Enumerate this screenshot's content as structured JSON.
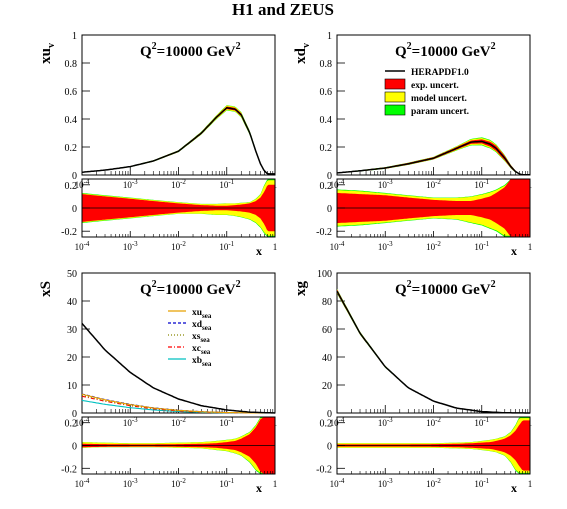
{
  "figure": {
    "title": "H1 and ZEUS",
    "scale_label": "Q",
    "scale_exp": "2",
    "scale_value": "=10000 GeV",
    "scale_unit_exp": "2"
  },
  "legend_uncert": {
    "entries": [
      "HERAPDF1.0",
      "exp. uncert.",
      "model uncert.",
      "param uncert."
    ]
  },
  "legend_sea": {
    "entries": [
      {
        "base": "xu",
        "sub": "sea"
      },
      {
        "base": "xd",
        "sub": "sea"
      },
      {
        "base": "xs",
        "sub": "sea"
      },
      {
        "base": "xc",
        "sub": "sea"
      },
      {
        "base": "xb",
        "sub": "sea"
      }
    ]
  },
  "colors": {
    "central": "#000000",
    "exp": "#ff0000",
    "model": "#ffff00",
    "param": "#00ff00",
    "xu_sea": "#e8a000",
    "xd_sea": "#0000cc",
    "xs_sea": "#888800",
    "xc_sea": "#ff0000",
    "xb_sea": "#00c0c0"
  },
  "chart_data": [
    {
      "type": "area",
      "panel": "xu_v",
      "ylabel_base": "xu",
      "ylabel_sub": "v",
      "xlabel": "x",
      "xscale": "log",
      "xlim": [
        0.0001,
        1
      ],
      "ylim": [
        0,
        1
      ],
      "yticks": [
        "0",
        "0.2",
        "0.4",
        "0.6",
        "0.8",
        "1"
      ],
      "xticks": [
        "10-4",
        "10-3",
        "10-2",
        "10-1",
        "1"
      ],
      "x": [
        0.0001,
        0.0003,
        0.001,
        0.003,
        0.01,
        0.03,
        0.06,
        0.1,
        0.15,
        0.2,
        0.3,
        0.4,
        0.5,
        0.6,
        0.7
      ],
      "series": [
        {
          "name": "HERAPDF1.0",
          "values": [
            0.02,
            0.035,
            0.06,
            0.1,
            0.17,
            0.3,
            0.41,
            0.48,
            0.47,
            0.43,
            0.3,
            0.17,
            0.08,
            0.03,
            0.008
          ]
        }
      ],
      "band_param_rel": [
        0.08,
        0.07,
        0.06,
        0.05,
        0.04,
        0.035,
        0.035,
        0.04,
        0.04,
        0.045,
        0.05,
        0.06,
        0.08,
        0.12,
        0.2
      ],
      "band_exp_rel": [
        0.06,
        0.05,
        0.045,
        0.04,
        0.03,
        0.025,
        0.02,
        0.02,
        0.02,
        0.025,
        0.03,
        0.04,
        0.05,
        0.07,
        0.1
      ]
    },
    {
      "type": "area",
      "panel": "xu_v_ratio",
      "xscale": "log",
      "xlim": [
        0.0001,
        1
      ],
      "ylim": [
        -0.25,
        0.25
      ],
      "yticks": [
        "0.2",
        "0",
        "-0.2"
      ],
      "xticks": [
        "10-4",
        "10-3",
        "10-2",
        "10-1",
        "1"
      ],
      "xlabel": "x",
      "x": [
        0.0001,
        0.0003,
        0.001,
        0.003,
        0.01,
        0.03,
        0.06,
        0.1,
        0.15,
        0.2,
        0.3,
        0.4,
        0.5,
        0.6,
        0.7
      ],
      "param": [
        0.13,
        0.11,
        0.09,
        0.07,
        0.05,
        0.035,
        0.035,
        0.04,
        0.04,
        0.045,
        0.05,
        0.08,
        0.12,
        0.2,
        0.25
      ],
      "param_low": [
        -0.13,
        -0.11,
        -0.09,
        -0.07,
        -0.05,
        -0.05,
        -0.06,
        -0.06,
        -0.07,
        -0.08,
        -0.1,
        -0.13,
        -0.17,
        -0.22,
        -0.25
      ],
      "exp": [
        0.12,
        0.1,
        0.08,
        0.06,
        0.04,
        0.025,
        0.02,
        0.02,
        0.025,
        0.03,
        0.04,
        0.06,
        0.09,
        0.14,
        0.2
      ]
    },
    {
      "type": "area",
      "panel": "xd_v",
      "ylabel_base": "xd",
      "ylabel_sub": "v",
      "xlabel": "x",
      "xscale": "log",
      "xlim": [
        0.0001,
        1
      ],
      "ylim": [
        0,
        1
      ],
      "yticks": [
        "0",
        "0.2",
        "0.4",
        "0.6",
        "0.8",
        "1"
      ],
      "xticks": [
        "10-4",
        "10-3",
        "10-2",
        "10-1",
        "1"
      ],
      "x": [
        0.0001,
        0.0003,
        0.001,
        0.003,
        0.01,
        0.03,
        0.06,
        0.1,
        0.15,
        0.2,
        0.3,
        0.4,
        0.5,
        0.6,
        0.7
      ],
      "series": [
        {
          "name": "HERAPDF1.0",
          "values": [
            0.015,
            0.03,
            0.05,
            0.08,
            0.12,
            0.19,
            0.235,
            0.24,
            0.22,
            0.19,
            0.12,
            0.06,
            0.025,
            0.008,
            0.002
          ]
        }
      ],
      "band_param_rel": [
        0.15,
        0.14,
        0.12,
        0.1,
        0.08,
        0.08,
        0.1,
        0.12,
        0.14,
        0.15,
        0.18,
        0.2,
        0.25,
        0.3,
        0.35
      ],
      "band_exp_rel": [
        0.12,
        0.11,
        0.1,
        0.08,
        0.06,
        0.05,
        0.05,
        0.06,
        0.08,
        0.1,
        0.13,
        0.17,
        0.22,
        0.28,
        0.35
      ]
    },
    {
      "type": "area",
      "panel": "xd_v_ratio",
      "xscale": "log",
      "xlim": [
        0.0001,
        1
      ],
      "ylim": [
        -0.25,
        0.25
      ],
      "yticks": [
        "0.2",
        "0",
        "-0.2"
      ],
      "xticks": [
        "10-4",
        "10-3",
        "10-2",
        "10-1",
        "1"
      ],
      "xlabel": "x",
      "x": [
        0.0001,
        0.0003,
        0.001,
        0.003,
        0.01,
        0.03,
        0.06,
        0.1,
        0.15,
        0.2,
        0.3,
        0.4,
        0.5,
        0.6,
        0.7
      ],
      "param": [
        0.16,
        0.15,
        0.13,
        0.11,
        0.09,
        0.09,
        0.1,
        0.12,
        0.14,
        0.16,
        0.2,
        0.25,
        0.25,
        0.25,
        0.25
      ],
      "param_low": [
        -0.16,
        -0.15,
        -0.13,
        -0.11,
        -0.09,
        -0.1,
        -0.13,
        -0.15,
        -0.18,
        -0.2,
        -0.25,
        -0.25,
        -0.25,
        -0.25,
        -0.25
      ],
      "exp": [
        0.13,
        0.12,
        0.11,
        0.09,
        0.07,
        0.06,
        0.06,
        0.08,
        0.1,
        0.13,
        0.18,
        0.25,
        0.25,
        0.25,
        0.25
      ]
    },
    {
      "type": "line",
      "panel": "xS",
      "ylabel_base": "xS",
      "xlabel": "x",
      "xscale": "log",
      "xlim": [
        0.0001,
        1
      ],
      "ylim": [
        0,
        50
      ],
      "yticks": [
        "0",
        "10",
        "20",
        "30",
        "40",
        "50"
      ],
      "xticks": [
        "10-4",
        "10-3",
        "10-2",
        "10-1",
        "1"
      ],
      "x": [
        0.0001,
        0.0003,
        0.001,
        0.003,
        0.01,
        0.03,
        0.1,
        0.3,
        1
      ],
      "series": [
        {
          "name": "xS",
          "values": [
            32,
            22.5,
            14.5,
            9,
            5,
            2.6,
            1.1,
            0.3,
            0
          ]
        },
        {
          "name": "xu_sea",
          "values": [
            6.7,
            4.7,
            3.0,
            1.8,
            0.95,
            0.45,
            0.18,
            0.04,
            0
          ]
        },
        {
          "name": "xd_sea",
          "values": [
            6.8,
            4.8,
            3.1,
            1.85,
            1.0,
            0.48,
            0.2,
            0.05,
            0
          ]
        },
        {
          "name": "xs_sea",
          "values": [
            6.3,
            4.4,
            2.8,
            1.7,
            0.9,
            0.4,
            0.15,
            0.03,
            0
          ]
        },
        {
          "name": "xc_sea",
          "values": [
            6.0,
            4.2,
            2.6,
            1.5,
            0.75,
            0.32,
            0.1,
            0.02,
            0
          ]
        },
        {
          "name": "xb_sea",
          "values": [
            4.5,
            3.1,
            1.9,
            1.1,
            0.55,
            0.22,
            0.07,
            0.01,
            0
          ]
        }
      ]
    },
    {
      "type": "area",
      "panel": "xS_ratio",
      "xscale": "log",
      "xlim": [
        0.0001,
        1
      ],
      "ylim": [
        -0.25,
        0.25
      ],
      "yticks": [
        "0.2",
        "0",
        "-0.2"
      ],
      "xticks": [
        "10-4",
        "10-3",
        "10-2",
        "10-1",
        "1"
      ],
      "xlabel": "x",
      "x": [
        0.0001,
        0.0003,
        0.001,
        0.003,
        0.01,
        0.03,
        0.06,
        0.1,
        0.15,
        0.2,
        0.3,
        0.4,
        0.5,
        0.6,
        0.7
      ],
      "param": [
        0.03,
        0.025,
        0.02,
        0.02,
        0.025,
        0.03,
        0.04,
        0.05,
        0.06,
        0.08,
        0.12,
        0.18,
        0.25,
        0.25,
        0.25
      ],
      "param_low": [
        -0.02,
        -0.015,
        -0.015,
        -0.015,
        -0.02,
        -0.025,
        -0.04,
        -0.05,
        -0.07,
        -0.09,
        -0.15,
        -0.22,
        -0.25,
        -0.25,
        -0.25
      ],
      "exp": [
        0.015,
        0.012,
        0.01,
        0.01,
        0.012,
        0.015,
        0.02,
        0.03,
        0.04,
        0.06,
        0.1,
        0.16,
        0.23,
        0.25,
        0.25
      ]
    },
    {
      "type": "area",
      "panel": "xg",
      "ylabel_base": "xg",
      "xlabel": "x",
      "xscale": "log",
      "xlim": [
        0.0001,
        1
      ],
      "ylim": [
        0,
        100
      ],
      "yticks": [
        "0",
        "20",
        "40",
        "60",
        "80",
        "100"
      ],
      "xticks": [
        "10-4",
        "10-3",
        "10-2",
        "10-1",
        "1"
      ],
      "x": [
        0.0001,
        0.0003,
        0.001,
        0.003,
        0.01,
        0.03,
        0.1,
        0.3,
        1
      ],
      "series": [
        {
          "name": "HERAPDF1.0",
          "values": [
            87,
            57,
            33,
            18,
            8.5,
            3.5,
            1.0,
            0.15,
            0
          ]
        }
      ],
      "band_param_rel": [
        0.02,
        0.02,
        0.02,
        0.02,
        0.02,
        0.03,
        0.05,
        0.1,
        0.1
      ],
      "band_exp_rel": [
        0.015,
        0.015,
        0.015,
        0.015,
        0.015,
        0.02,
        0.04,
        0.08,
        0.08
      ]
    },
    {
      "type": "area",
      "panel": "xg_ratio",
      "xscale": "log",
      "xlim": [
        0.0001,
        1
      ],
      "ylim": [
        -0.25,
        0.25
      ],
      "yticks": [
        "0.2",
        "0",
        "-0.2"
      ],
      "xticks": [
        "10-4",
        "10-3",
        "10-2",
        "10-1",
        "1"
      ],
      "xlabel": "x",
      "x": [
        0.0001,
        0.0003,
        0.001,
        0.003,
        0.01,
        0.03,
        0.06,
        0.1,
        0.15,
        0.2,
        0.3,
        0.4,
        0.5,
        0.6,
        0.7
      ],
      "param": [
        0.02,
        0.02,
        0.02,
        0.02,
        0.02,
        0.025,
        0.03,
        0.04,
        0.05,
        0.06,
        0.08,
        0.12,
        0.18,
        0.25,
        0.25
      ],
      "param_low": [
        -0.02,
        -0.02,
        -0.02,
        -0.02,
        -0.02,
        -0.025,
        -0.03,
        -0.04,
        -0.05,
        -0.06,
        -0.09,
        -0.15,
        -0.22,
        -0.25,
        -0.25
      ],
      "exp": [
        0.01,
        0.01,
        0.01,
        0.01,
        0.012,
        0.015,
        0.02,
        0.025,
        0.03,
        0.04,
        0.06,
        0.09,
        0.13,
        0.18,
        0.22
      ]
    }
  ]
}
